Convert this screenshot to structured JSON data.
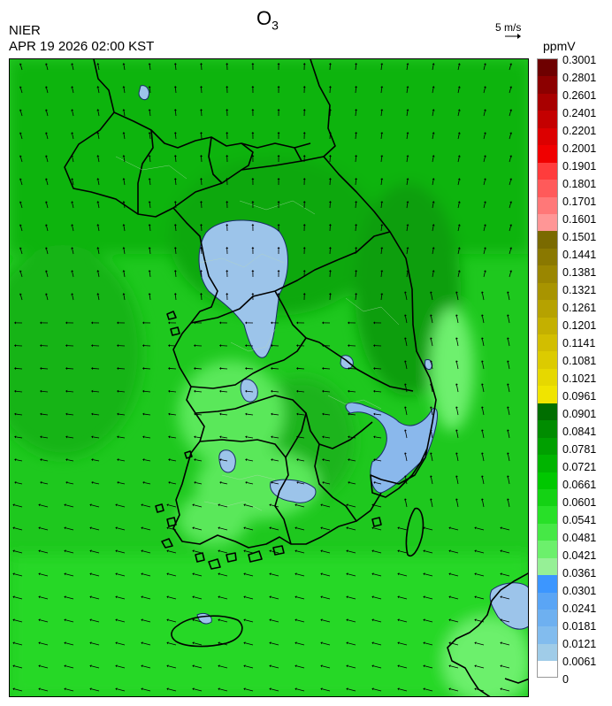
{
  "header": {
    "title_main": "O",
    "title_sub": "3",
    "agency": "NIER",
    "datetime": "APR 19 2026 02:00 KST"
  },
  "reference_vector": {
    "label": "5 m/s"
  },
  "legend": {
    "unit": "ppmV",
    "labels": [
      "0.3001",
      "0.2801",
      "0.2601",
      "0.2401",
      "0.2201",
      "0.2001",
      "0.1901",
      "0.1801",
      "0.1701",
      "0.1601",
      "0.1501",
      "0.1441",
      "0.1381",
      "0.1321",
      "0.1261",
      "0.1201",
      "0.1141",
      "0.1081",
      "0.1021",
      "0.0961",
      "0.0901",
      "0.0841",
      "0.0781",
      "0.0721",
      "0.0661",
      "0.0601",
      "0.0541",
      "0.0481",
      "0.0421",
      "0.0361",
      "0.0301",
      "0.0241",
      "0.0181",
      "0.0121",
      "0.0061",
      "0"
    ],
    "colors": [
      "#6e0000",
      "#8c0000",
      "#a80000",
      "#c40000",
      "#dc0000",
      "#f00000",
      "#ff3c3c",
      "#ff5a5a",
      "#ff7878",
      "#ff9696",
      "#7a6a00",
      "#8a7800",
      "#9a8600",
      "#a89400",
      "#b6a200",
      "#c4b000",
      "#d2be00",
      "#dccb00",
      "#e6d800",
      "#f0e400",
      "#006e00",
      "#008c00",
      "#00a000",
      "#00b400",
      "#00c800",
      "#14d214",
      "#28e028",
      "#46e846",
      "#6cf06c",
      "#96f096",
      "#3c96ff",
      "#5aa5f5",
      "#6eb0f0",
      "#82bcee",
      "#a0cce8"
    ]
  },
  "map": {
    "background_color": "#22c822",
    "land_border_color": "#000000"
  }
}
